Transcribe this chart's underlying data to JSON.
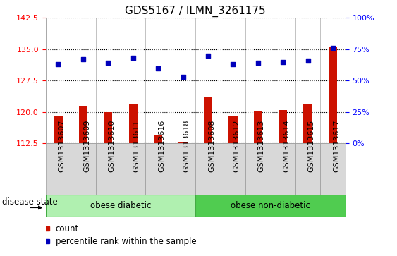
{
  "title": "GDS5167 / ILMN_3261175",
  "samples": [
    "GSM1313607",
    "GSM1313609",
    "GSM1313610",
    "GSM1313611",
    "GSM1313616",
    "GSM1313618",
    "GSM1313608",
    "GSM1313612",
    "GSM1313613",
    "GSM1313614",
    "GSM1313615",
    "GSM1313617"
  ],
  "bar_values": [
    119.0,
    121.5,
    120.0,
    121.8,
    114.5,
    112.8,
    123.5,
    119.0,
    120.2,
    120.5,
    121.8,
    135.5
  ],
  "percentile_values": [
    63,
    67,
    64,
    68,
    60,
    53,
    70,
    63,
    64,
    65,
    66,
    76
  ],
  "ylim_left": [
    112.5,
    142.5
  ],
  "yticks_left": [
    112.5,
    120.0,
    127.5,
    135.0,
    142.5
  ],
  "yticks_right": [
    0,
    25,
    50,
    75,
    100
  ],
  "ytick_right_labels": [
    "0%",
    "25%",
    "50%",
    "75%",
    "100%"
  ],
  "ylim_right": [
    0,
    100
  ],
  "bar_color": "#cc1100",
  "dot_color": "#0000bb",
  "group1_label": "obese diabetic",
  "group2_label": "obese non-diabetic",
  "group1_count": 6,
  "group2_count": 6,
  "disease_state_label": "disease state",
  "legend_count_label": "count",
  "legend_percentile_label": "percentile rank within the sample",
  "plot_bg_color": "#ffffff",
  "xtick_bg_color": "#d8d8d8",
  "group1_color": "#b0f0b0",
  "group2_color": "#50cc50",
  "title_fontsize": 11,
  "axis_fontsize": 8.5,
  "tick_fontsize": 8
}
